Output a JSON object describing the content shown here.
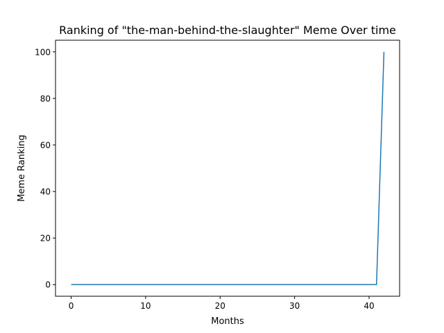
{
  "chart_data": {
    "type": "line",
    "title": "Ranking of \"the-man-behind-the-slaughter\" Meme Over time",
    "xlabel": "Months",
    "ylabel": "Meme Ranking",
    "xlim": [
      -2.1,
      44.1
    ],
    "ylim": [
      -5,
      105
    ],
    "xticks": [
      0,
      10,
      20,
      30,
      40
    ],
    "yticks": [
      0,
      20,
      40,
      60,
      80,
      100
    ],
    "grid": false,
    "series": [
      {
        "color": "#1f77b4",
        "x": [
          0,
          1,
          2,
          3,
          4,
          5,
          6,
          7,
          8,
          9,
          10,
          11,
          12,
          13,
          14,
          15,
          16,
          17,
          18,
          19,
          20,
          21,
          22,
          23,
          24,
          25,
          26,
          27,
          28,
          29,
          30,
          31,
          32,
          33,
          34,
          35,
          36,
          37,
          38,
          39,
          40,
          41,
          42
        ],
        "y": [
          0,
          0,
          0,
          0,
          0,
          0,
          0,
          0,
          0,
          0,
          0,
          0,
          0,
          0,
          0,
          0,
          0,
          0,
          0,
          0,
          0,
          0,
          0,
          0,
          0,
          0,
          0,
          0,
          0,
          0,
          0,
          0,
          0,
          0,
          0,
          0,
          0,
          0,
          0,
          0,
          0,
          0,
          100
        ]
      }
    ]
  }
}
